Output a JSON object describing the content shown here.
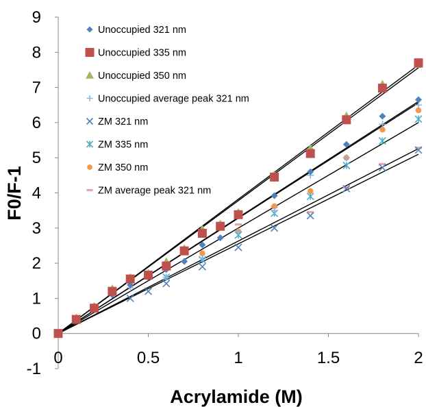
{
  "chart_data": {
    "type": "scatter",
    "xlabel": "Acrylamide (M)",
    "ylabel": "F0/F-1",
    "xlim": [
      0,
      2
    ],
    "ylim": [
      -1,
      9
    ],
    "x_ticks": [
      "0",
      "0.5",
      "1",
      "1.5",
      "2"
    ],
    "y_ticks": [
      "-1",
      "0",
      "1",
      "2",
      "3",
      "4",
      "5",
      "6",
      "7",
      "8",
      "9"
    ],
    "grid": false,
    "legend_position": "top-left",
    "series": [
      {
        "name": "Unoccupied 321 nm",
        "marker": "diamond",
        "color": "#4f81bd",
        "x": [
          0,
          0.1,
          0.2,
          0.3,
          0.4,
          0.5,
          0.6,
          0.7,
          0.8,
          0.9,
          1.0,
          1.2,
          1.4,
          1.6,
          1.8,
          2.0
        ],
        "y": [
          0,
          0.4,
          0.72,
          1.1,
          1.38,
          1.6,
          1.82,
          2.05,
          2.52,
          2.72,
          3.35,
          3.92,
          4.6,
          5.38,
          6.18,
          6.65
        ]
      },
      {
        "name": "Unoccupied 335 nm",
        "marker": "square",
        "color": "#c0504d",
        "x": [
          0,
          0.1,
          0.2,
          0.3,
          0.4,
          0.5,
          0.6,
          0.7,
          0.8,
          0.9,
          1.0,
          1.2,
          1.4,
          1.6,
          1.8,
          2.0
        ],
        "y": [
          0,
          0.4,
          0.72,
          1.2,
          1.55,
          1.66,
          1.92,
          2.35,
          2.85,
          3.05,
          3.38,
          4.45,
          5.12,
          6.08,
          6.98,
          7.7
        ]
      },
      {
        "name": "Unoccupied 350 nm",
        "marker": "triangle",
        "color": "#9bbb59",
        "x": [
          0,
          0.1,
          0.2,
          0.3,
          0.4,
          0.5,
          0.6,
          0.7,
          0.8,
          0.9,
          1.0,
          1.2,
          1.4,
          1.6,
          1.8,
          2.0
        ],
        "y": [
          0,
          0.45,
          0.78,
          1.28,
          1.6,
          1.72,
          2.05,
          2.42,
          2.98,
          3.12,
          3.45,
          4.52,
          5.28,
          6.2,
          7.1,
          7.65
        ]
      },
      {
        "name": "Unoccupied average peak 321 nm",
        "marker": "plus",
        "color": "#8eb4e3",
        "x": [
          0.4,
          0.6,
          0.8,
          1.0,
          1.2,
          1.4,
          1.6,
          1.8,
          2.0
        ],
        "y": [
          1.3,
          1.6,
          2.15,
          2.9,
          3.5,
          4.5,
          5.0,
          5.95,
          6.5
        ]
      },
      {
        "name": "ZM 321 nm",
        "marker": "x",
        "color": "#4f81bd",
        "x": [
          0.4,
          0.5,
          0.6,
          0.8,
          1.0,
          1.2,
          1.4,
          1.6,
          1.8,
          2.0
        ],
        "y": [
          1.0,
          1.2,
          1.42,
          1.9,
          2.45,
          3.0,
          3.35,
          4.12,
          4.72,
          5.22
        ]
      },
      {
        "name": "ZM 335 nm",
        "marker": "asterisk",
        "color": "#4bacc6",
        "x": [
          0.6,
          0.8,
          1.0,
          1.2,
          1.4,
          1.6,
          1.8,
          2.0
        ],
        "y": [
          1.6,
          2.1,
          2.8,
          3.42,
          3.9,
          4.78,
          5.48,
          6.1
        ]
      },
      {
        "name": "ZM 350 nm",
        "marker": "circle",
        "color": "#f79646",
        "x": [
          0.8,
          1.0,
          1.2,
          1.4,
          1.6,
          1.8,
          2.0
        ],
        "y": [
          2.28,
          2.9,
          3.62,
          4.05,
          5.0,
          5.8,
          6.35
        ]
      },
      {
        "name": "ZM average peak 321 nm",
        "marker": "dash",
        "color": "#e6a4a4",
        "x": [
          1.0,
          1.2,
          1.4,
          1.6,
          1.8,
          2.0
        ],
        "y": [
          3.1,
          3.6,
          3.45,
          4.15,
          4.82,
          5.28
        ]
      }
    ],
    "fit_lines": [
      {
        "slope": 3.82
      },
      {
        "slope": 3.78
      },
      {
        "slope": 3.3
      },
      {
        "slope": 3.28
      },
      {
        "slope": 3.0
      },
      {
        "slope": 2.63
      },
      {
        "slope": 2.55
      }
    ]
  }
}
